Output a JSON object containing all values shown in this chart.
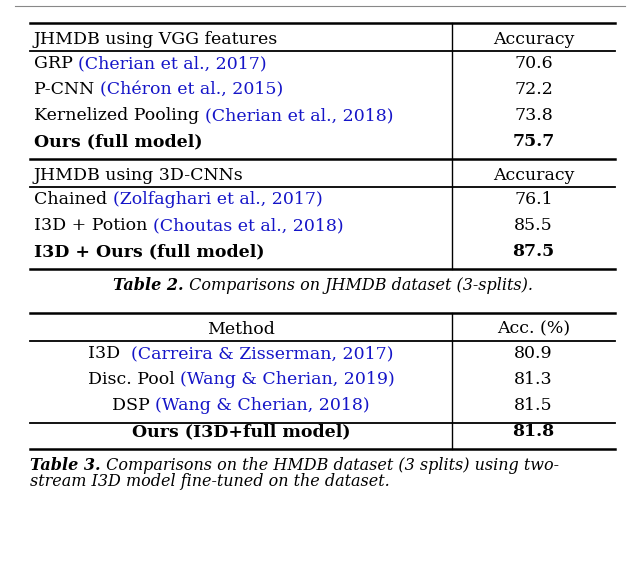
{
  "t1_header1": "JHMDB using VGG features",
  "t1_header2": "JHMDB using 3D-CNNs",
  "t1_acc_header": "Accuracy",
  "t1_rows1": [
    {
      "plain": "GRP ",
      "cite": "(Cherian et al., 2017)",
      "val": "70.6",
      "bold": false
    },
    {
      "plain": "P-CNN ",
      "cite": "(Chéron et al., 2015)",
      "val": "72.2",
      "bold": false
    },
    {
      "plain": "Kernelized Pooling ",
      "cite": "(Cherian et al., 2018)",
      "val": "73.8",
      "bold": false
    },
    {
      "plain": "Ours (full model)",
      "cite": "",
      "val": "75.7",
      "bold": true
    }
  ],
  "t1_rows2": [
    {
      "plain": "Chained ",
      "cite": "(Zolfaghari et al., 2017)",
      "val": "76.1",
      "bold": false
    },
    {
      "plain": "I3D + Potion ",
      "cite": "(Choutas et al., 2018)",
      "val": "85.5",
      "bold": false
    },
    {
      "plain": "I3D + Ours (full model)",
      "cite": "",
      "val": "87.5",
      "bold": true
    }
  ],
  "t1_caption_bold": "Table 2.",
  "t1_caption_normal": " Comparisons on JHMDB dataset (3-splits).",
  "t2_method_header": "Method",
  "t2_acc_header": "Acc. (%)",
  "t2_rows": [
    {
      "plain": "I3D  ",
      "cite": "(Carreira & Zisserman, 2017)",
      "val": "80.9",
      "bold": false
    },
    {
      "plain": "Disc. Pool ",
      "cite": "(Wang & Cherian, 2019)",
      "val": "81.3",
      "bold": false
    },
    {
      "plain": "DSP ",
      "cite": "(Wang & Cherian, 2018)",
      "val": "81.5",
      "bold": false
    },
    {
      "plain": "Ours (I3D+full model)",
      "cite": "",
      "val": "81.8",
      "bold": true
    }
  ],
  "t2_caption_bold": "Table 3.",
  "t2_caption_line1": " Comparisons on the HMDB dataset (3 splits) using two-",
  "t2_caption_line2": "stream I3D model fine-tuned on the dataset.",
  "cite_color": "#1515c8",
  "black": "#000000",
  "bg": "#ffffff",
  "fs": 12.5,
  "fs_cap": 11.5
}
